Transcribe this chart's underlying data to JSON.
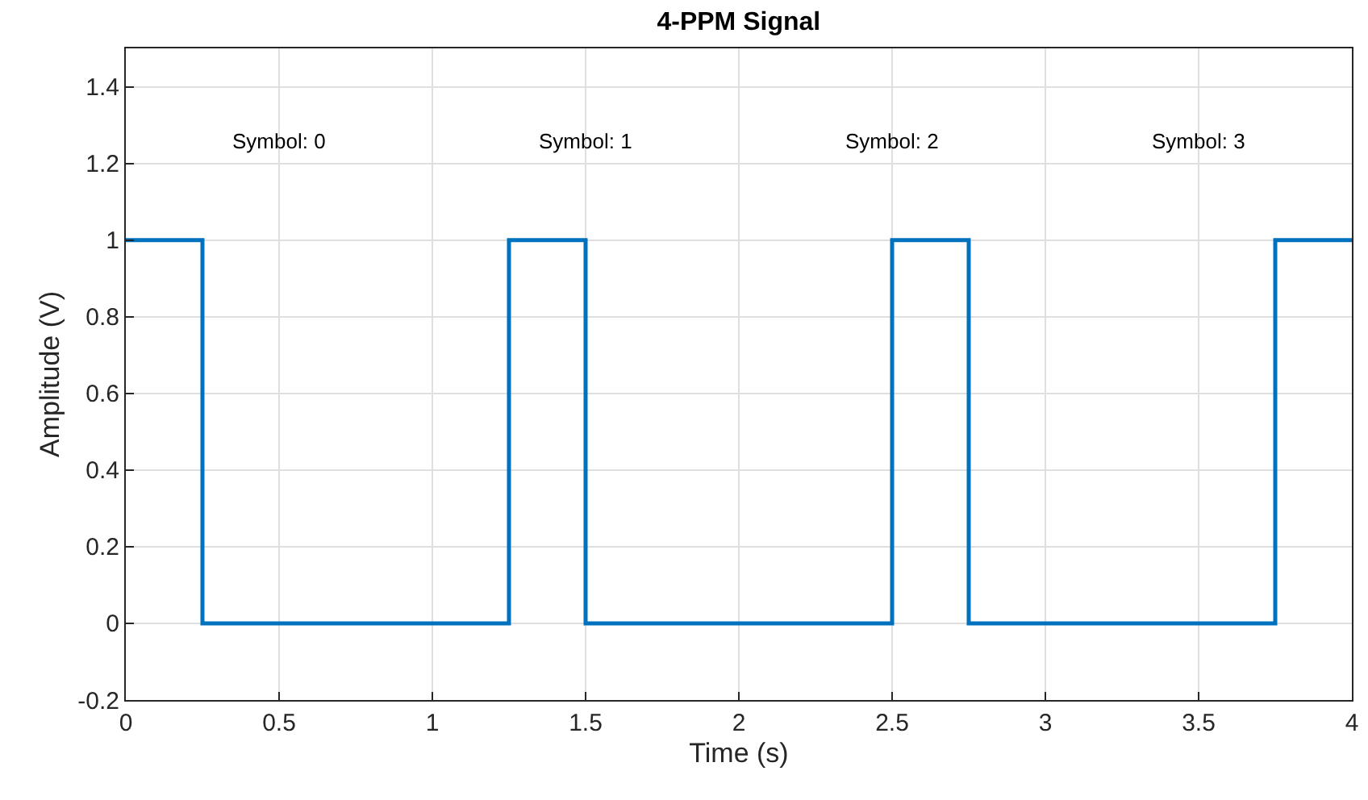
{
  "chart_data": {
    "type": "step",
    "title": "4-PPM Signal",
    "xlabel": "Time (s)",
    "ylabel": "Amplitude (V)",
    "x": [
      0,
      0.25,
      1.25,
      1.5,
      2.5,
      2.75,
      3.75,
      4
    ],
    "series": [
      {
        "color": "#0072bd",
        "values": [
          1,
          0,
          1,
          0,
          1,
          0,
          1,
          1
        ]
      }
    ],
    "xlim": [
      0,
      4
    ],
    "ylim": [
      -0.2,
      1.5
    ],
    "xticks": [
      0,
      0.5,
      1,
      1.5,
      2,
      2.5,
      3,
      3.5,
      4
    ],
    "yticks": [
      -0.2,
      0,
      0.2,
      0.4,
      0.6,
      0.8,
      1,
      1.2,
      1.4
    ],
    "annotations": [
      "Symbol: 0",
      "Symbol: 1",
      "Symbol: 2",
      "Symbol: 3"
    ],
    "grid": true,
    "line_style": "solid"
  }
}
